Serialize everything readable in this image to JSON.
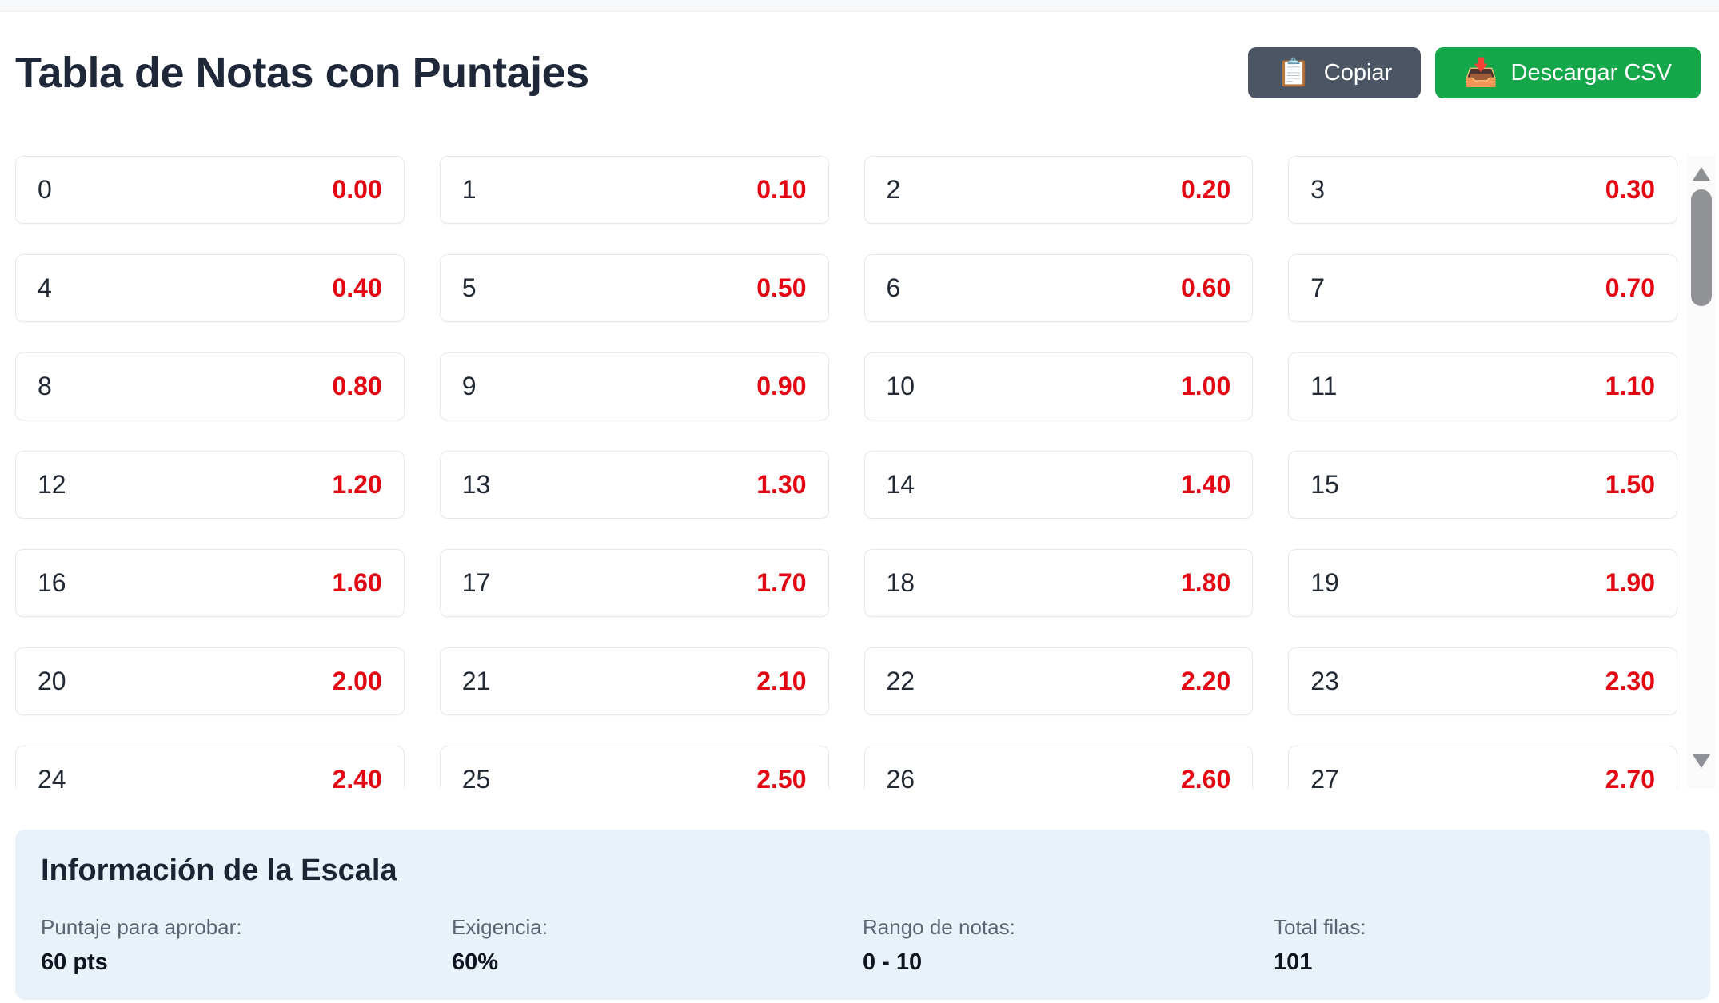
{
  "page": {
    "title": "Tabla de Notas con Puntajes"
  },
  "toolbar": {
    "copy_label": "Copiar",
    "copy_icon": "📋",
    "download_label": "Descargar CSV",
    "download_icon": "📥"
  },
  "colors": {
    "grade_red": "#e30713",
    "copy_button_bg": "#4b5563",
    "download_button_bg": "#17a74b",
    "title_dark": "#1e2838",
    "info_panel_bg": "#e9f1fb"
  },
  "grades_table": {
    "rows": [
      {
        "score": "0",
        "grade": "0.00"
      },
      {
        "score": "1",
        "grade": "0.10"
      },
      {
        "score": "2",
        "grade": "0.20"
      },
      {
        "score": "3",
        "grade": "0.30"
      },
      {
        "score": "4",
        "grade": "0.40"
      },
      {
        "score": "5",
        "grade": "0.50"
      },
      {
        "score": "6",
        "grade": "0.60"
      },
      {
        "score": "7",
        "grade": "0.70"
      },
      {
        "score": "8",
        "grade": "0.80"
      },
      {
        "score": "9",
        "grade": "0.90"
      },
      {
        "score": "10",
        "grade": "1.00"
      },
      {
        "score": "11",
        "grade": "1.10"
      },
      {
        "score": "12",
        "grade": "1.20"
      },
      {
        "score": "13",
        "grade": "1.30"
      },
      {
        "score": "14",
        "grade": "1.40"
      },
      {
        "score": "15",
        "grade": "1.50"
      },
      {
        "score": "16",
        "grade": "1.60"
      },
      {
        "score": "17",
        "grade": "1.70"
      },
      {
        "score": "18",
        "grade": "1.80"
      },
      {
        "score": "19",
        "grade": "1.90"
      },
      {
        "score": "20",
        "grade": "2.00"
      },
      {
        "score": "21",
        "grade": "2.10"
      },
      {
        "score": "22",
        "grade": "2.20"
      },
      {
        "score": "23",
        "grade": "2.30"
      },
      {
        "score": "24",
        "grade": "2.40"
      },
      {
        "score": "25",
        "grade": "2.50"
      },
      {
        "score": "26",
        "grade": "2.60"
      },
      {
        "score": "27",
        "grade": "2.70"
      }
    ]
  },
  "scale_info": {
    "heading": "Información de la Escala",
    "items": [
      {
        "label": "Puntaje para aprobar:",
        "value": "60 pts"
      },
      {
        "label": "Exigencia:",
        "value": "60%"
      },
      {
        "label": "Rango de notas:",
        "value": "0 - 10"
      },
      {
        "label": "Total filas:",
        "value": "101"
      }
    ]
  }
}
